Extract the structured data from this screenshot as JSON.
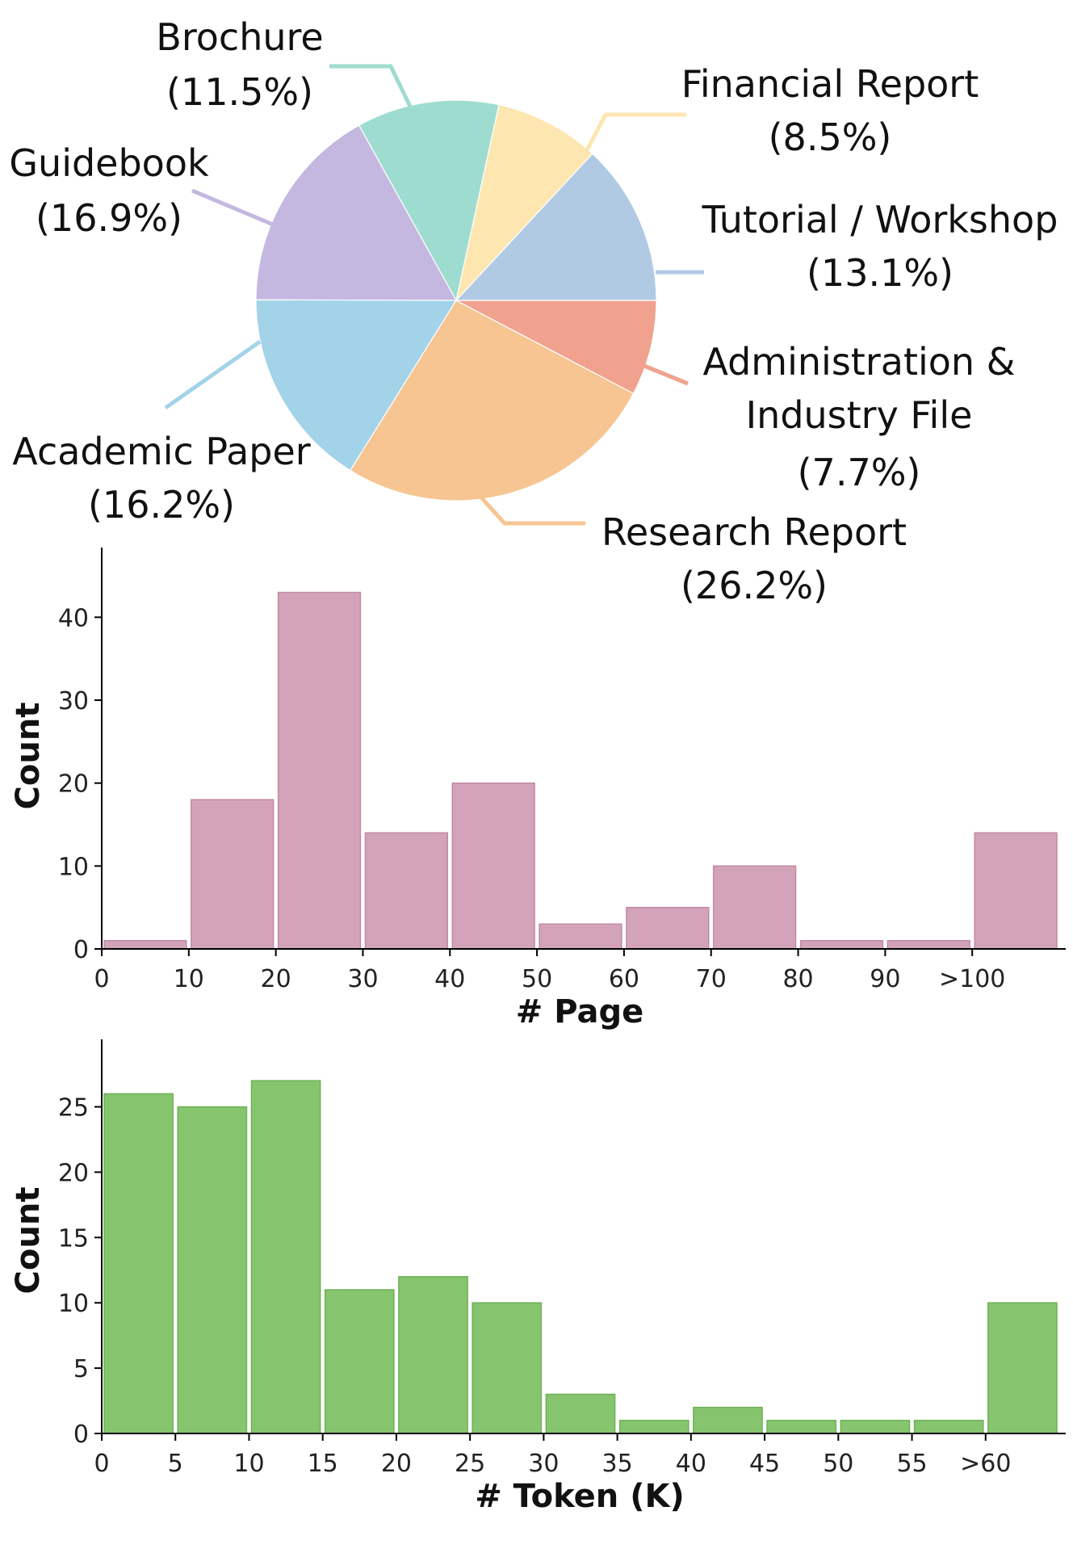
{
  "chart_data": [
    {
      "type": "pie",
      "title": "",
      "slices": [
        {
          "label": "Tutorial / Workshop",
          "pct_label": "(13.1%)",
          "value": 13.1,
          "color": "#b0cae4",
          "leader_color": "#b0cae4"
        },
        {
          "label": "Financial Report",
          "pct_label": "(8.5%)",
          "value": 8.5,
          "color": "#fde6b0",
          "leader_color": "#fde6b0"
        },
        {
          "label": "Brochure",
          "pct_label": "(11.5%)",
          "value": 11.5,
          "color": "#9fdcd0",
          "leader_color": "#9fdcd0"
        },
        {
          "label": "Guidebook",
          "pct_label": "(16.9%)",
          "value": 16.9,
          "color": "#c4b8e0",
          "leader_color": "#c4b8e0"
        },
        {
          "label": "Academic Paper",
          "pct_label": "(16.2%)",
          "value": 16.2,
          "color": "#a3d3e9",
          "leader_color": "#a3d3e9"
        },
        {
          "label": "Research Report",
          "pct_label": "(26.2%)",
          "value": 26.2,
          "color": "#f6c592",
          "leader_color": "#f6c592"
        },
        {
          "label": "Administration &",
          "label_line2": "Industry File",
          "pct_label": "(7.7%)",
          "value": 7.7,
          "color": "#f0a28f",
          "leader_color": "#f0a28f"
        }
      ]
    },
    {
      "type": "bar",
      "title": "",
      "xlabel": "# Page",
      "ylabel": "Count",
      "ylim": [
        0,
        45
      ],
      "yticks": [
        0,
        10,
        20,
        30,
        40
      ],
      "tick_labels": [
        "0",
        "10",
        "20",
        "30",
        "40",
        "50",
        "60",
        "70",
        "80",
        "90",
        ">100"
      ],
      "bins": [
        "0-10",
        "10-20",
        "20-30",
        "30-40",
        "40-50",
        "50-60",
        "60-70",
        "70-80",
        "80-90",
        "90-100",
        ">100"
      ],
      "values": [
        1,
        18,
        43,
        14,
        20,
        3,
        5,
        10,
        1,
        1,
        14
      ],
      "color": "#d2a3b9",
      "edge_color": "#c28aa6"
    },
    {
      "type": "bar",
      "title": "",
      "xlabel": "# Token (K)",
      "ylabel": "Count",
      "ylim": [
        0,
        28
      ],
      "yticks": [
        0,
        5,
        10,
        15,
        20,
        25
      ],
      "tick_labels": [
        "0",
        "5",
        "10",
        "15",
        "20",
        "25",
        "30",
        "35",
        "40",
        "45",
        "50",
        "55",
        ">60"
      ],
      "bins": [
        "0-5",
        "5-10",
        "10-15",
        "15-20",
        "20-25",
        "25-30",
        "30-35",
        "35-40",
        "40-45",
        "45-50",
        "50-55",
        "55-60",
        ">60"
      ],
      "values": [
        26,
        25,
        27,
        11,
        12,
        10,
        3,
        1,
        2,
        1,
        1,
        1,
        10
      ],
      "color": "#86c46e",
      "edge_color": "#6fb257"
    }
  ]
}
